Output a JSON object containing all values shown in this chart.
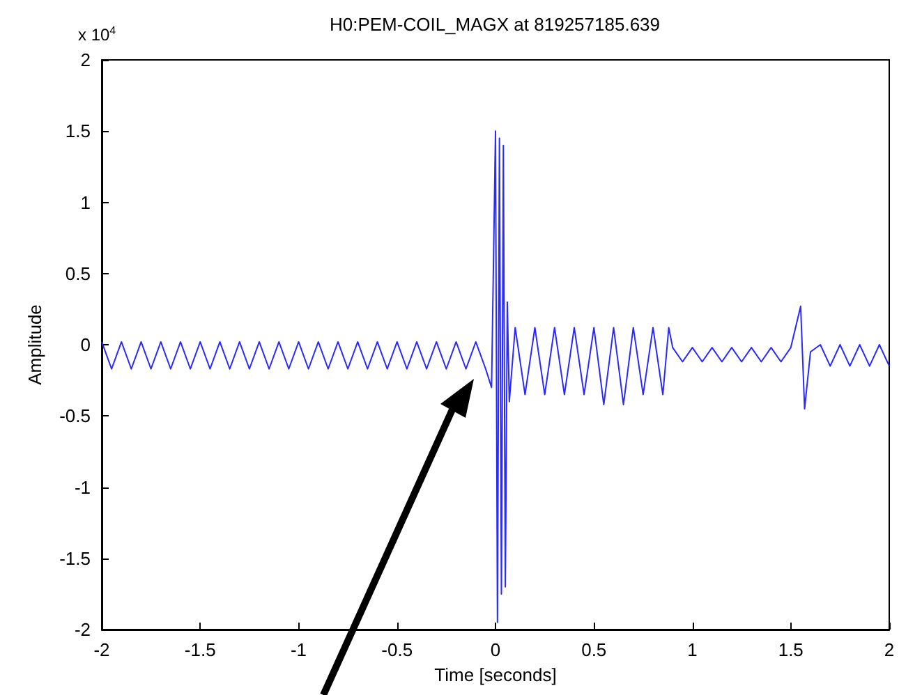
{
  "chart_data": {
    "type": "line",
    "title": "H0:PEM-COIL_MAGX at 819257185.639",
    "xlabel": "Time [seconds]",
    "ylabel": "Amplitude",
    "annotations": [
      "x 10$^{4}$"
    ],
    "x": [
      -2,
      -1.95,
      -1.9,
      -1.85,
      -1.8,
      -1.75,
      -1.7,
      -1.65,
      -1.6,
      -1.55,
      -1.5,
      -1.45,
      -1.4,
      -1.35,
      -1.3,
      -1.25,
      -1.2,
      -1.15,
      -1.1,
      -1.05,
      -1,
      -0.95,
      -0.9,
      -0.85,
      -0.8,
      -0.75,
      -0.7,
      -0.65,
      -0.6,
      -0.55,
      -0.5,
      -0.45,
      -0.4,
      -0.35,
      -0.3,
      -0.25,
      -0.2,
      -0.15,
      -0.1,
      -0.05,
      -0.02,
      0,
      0.01,
      0.02,
      0.03,
      0.04,
      0.05,
      0.06,
      0.07,
      0.1,
      0.15,
      0.2,
      0.25,
      0.3,
      0.35,
      0.4,
      0.45,
      0.5,
      0.55,
      0.6,
      0.65,
      0.7,
      0.75,
      0.8,
      0.85,
      0.88,
      0.9,
      0.95,
      1,
      1.05,
      1.1,
      1.15,
      1.2,
      1.25,
      1.3,
      1.35,
      1.4,
      1.45,
      1.5,
      1.55,
      1.57,
      1.6,
      1.65,
      1.7,
      1.75,
      1.8,
      1.85,
      1.9,
      1.95,
      2
    ],
    "series": [
      {
        "color": "#2a2aff",
        "values": [
          0.02,
          -0.17,
          0.02,
          -0.17,
          0.02,
          -0.17,
          0.02,
          -0.17,
          0.02,
          -0.17,
          0.02,
          -0.17,
          0.02,
          -0.17,
          0.02,
          -0.17,
          0.02,
          -0.17,
          0.02,
          -0.17,
          0.02,
          -0.17,
          0.02,
          -0.17,
          0.02,
          -0.17,
          0.02,
          -0.17,
          0.02,
          -0.17,
          0.02,
          -0.17,
          0.02,
          -0.17,
          0.02,
          -0.17,
          0.02,
          -0.17,
          0.02,
          -0.17,
          -0.3,
          1.5,
          -1.95,
          1.45,
          -1.75,
          1.4,
          -1.7,
          0.3,
          -0.4,
          0.12,
          -0.35,
          0.12,
          -0.35,
          0.12,
          -0.35,
          0.12,
          -0.35,
          0.12,
          -0.42,
          0.12,
          -0.42,
          0.12,
          -0.35,
          0.12,
          -0.35,
          0.12,
          -0.02,
          -0.12,
          -0.02,
          -0.12,
          -0.02,
          -0.12,
          -0.02,
          -0.12,
          -0.02,
          -0.12,
          -0.02,
          -0.12,
          -0.02,
          0.27,
          -0.45,
          -0.05,
          0,
          -0.15,
          0,
          -0.15,
          0,
          -0.15,
          0,
          -0.15
        ]
      }
    ],
    "xlim": [
      -2,
      2
    ],
    "xticks": [
      -2,
      -1.5,
      -1,
      -0.5,
      0,
      0.5,
      1,
      1.5,
      2
    ],
    "ylim": [
      -2,
      2
    ],
    "yticks": [
      -2,
      -1.5,
      -1,
      -0.5,
      0,
      0.5,
      1,
      1.5,
      2
    ],
    "marker": "none",
    "line_style": "solid"
  }
}
